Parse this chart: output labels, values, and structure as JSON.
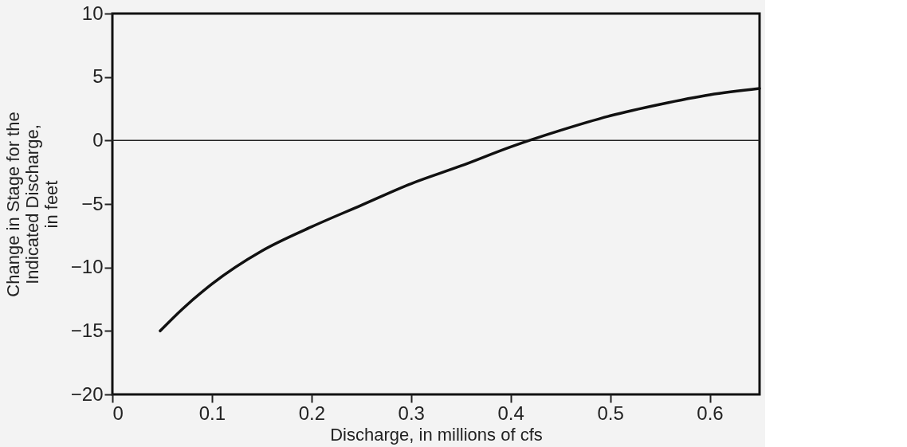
{
  "chart_data": {
    "type": "line",
    "xlabel": "Discharge, in millions of cfs",
    "ylabel": "Change in Stage for the\nIndicated Discharge,\nin feet",
    "x": [
      0.048,
      0.07,
      0.1,
      0.15,
      0.2,
      0.25,
      0.3,
      0.35,
      0.4,
      0.45,
      0.5,
      0.55,
      0.6,
      0.65
    ],
    "series": [
      {
        "color": "#111111",
        "values": [
          -15,
          -13.3,
          -11.3,
          -8.7,
          -6.8,
          -5.1,
          -3.4,
          -2,
          -0.5,
          0.8,
          1.95,
          2.85,
          3.6,
          4.1
        ]
      }
    ],
    "xlim": [
      0,
      0.65
    ],
    "xticks": [
      0,
      0.1,
      0.2,
      0.3,
      0.4,
      0.5,
      0.6
    ],
    "ylim": [
      -20,
      10
    ],
    "yticks": [
      -20,
      -15,
      -10,
      -5,
      0,
      5,
      10
    ],
    "ref_lines": [
      {
        "axis": "y",
        "value": 0,
        "color": "#222222"
      }
    ],
    "grid": false,
    "marker": "none",
    "line_style": "solid"
  }
}
